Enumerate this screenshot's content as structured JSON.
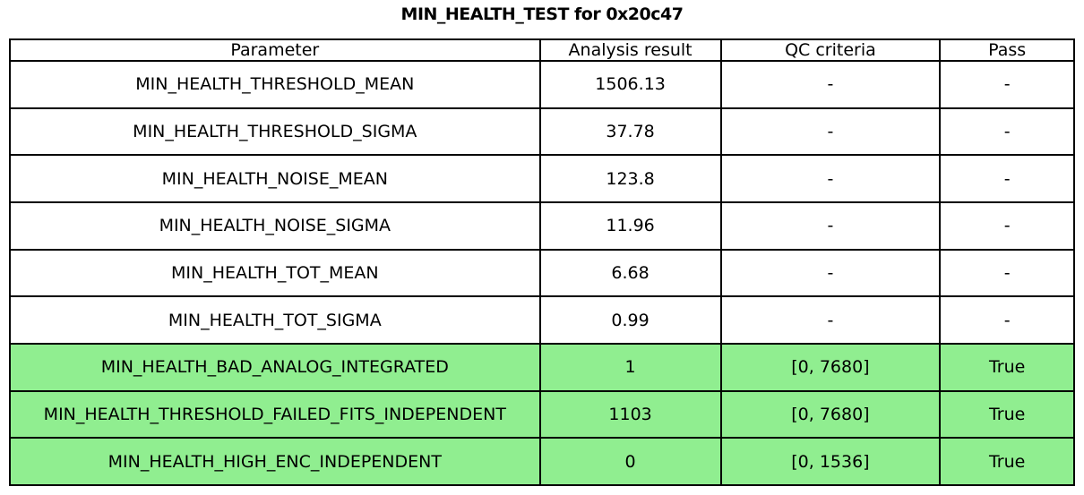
{
  "figure": {
    "title": "MIN_HEALTH_TEST for 0x20c47"
  },
  "chart_data": {
    "type": "table",
    "title": "MIN_HEALTH_TEST for 0x20c47",
    "columns": [
      "Parameter",
      "Analysis result",
      "QC criteria",
      "Pass"
    ],
    "rows": [
      {
        "parameter": "MIN_HEALTH_THRESHOLD_MEAN",
        "result": "1506.13",
        "qc": "-",
        "pass": "-",
        "highlight": false
      },
      {
        "parameter": "MIN_HEALTH_THRESHOLD_SIGMA",
        "result": "37.78",
        "qc": "-",
        "pass": "-",
        "highlight": false
      },
      {
        "parameter": "MIN_HEALTH_NOISE_MEAN",
        "result": "123.8",
        "qc": "-",
        "pass": "-",
        "highlight": false
      },
      {
        "parameter": "MIN_HEALTH_NOISE_SIGMA",
        "result": "11.96",
        "qc": "-",
        "pass": "-",
        "highlight": false
      },
      {
        "parameter": "MIN_HEALTH_TOT_MEAN",
        "result": "6.68",
        "qc": "-",
        "pass": "-",
        "highlight": false
      },
      {
        "parameter": "MIN_HEALTH_TOT_SIGMA",
        "result": "0.99",
        "qc": "-",
        "pass": "-",
        "highlight": false
      },
      {
        "parameter": "MIN_HEALTH_BAD_ANALOG_INTEGRATED",
        "result": "1",
        "qc": "[0, 7680]",
        "pass": "True",
        "highlight": true
      },
      {
        "parameter": "MIN_HEALTH_THRESHOLD_FAILED_FITS_INDEPENDENT",
        "result": "1103",
        "qc": "[0, 7680]",
        "pass": "True",
        "highlight": true
      },
      {
        "parameter": "MIN_HEALTH_HIGH_ENC_INDEPENDENT",
        "result": "0",
        "qc": "[0, 1536]",
        "pass": "True",
        "highlight": true
      }
    ],
    "colors": {
      "highlight_bg": "#90EE90",
      "normal_bg": "#FFFFFF",
      "border": "#000000",
      "text": "#000000"
    },
    "layout": {
      "legend": "none",
      "grid": "full-cell-borders",
      "pass_marker": "True"
    }
  }
}
